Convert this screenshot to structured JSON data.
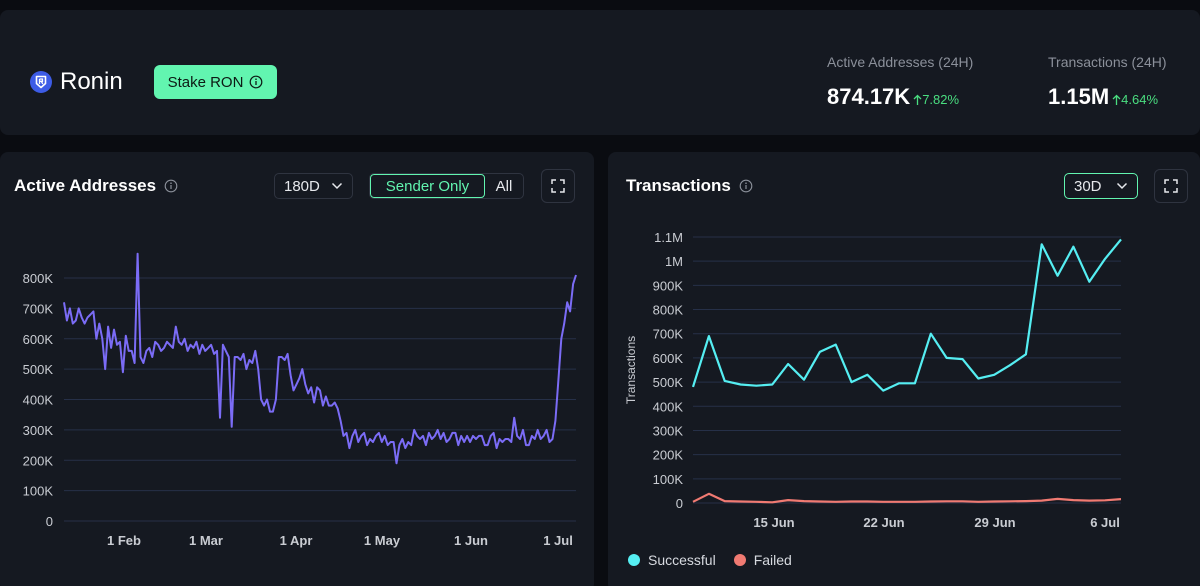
{
  "header": {
    "brand": "Ronin",
    "stake_button": "Stake RON",
    "stats": [
      {
        "label": "Active Addresses (24H)",
        "value": "874.17K",
        "change": "7.82%"
      },
      {
        "label": "Transactions (24H)",
        "value": "1.15M",
        "change": "4.64%"
      }
    ]
  },
  "panels": {
    "active": {
      "title": "Active Addresses",
      "range": "180D",
      "toggle": [
        "Sender Only",
        "All"
      ]
    },
    "tx": {
      "title": "Transactions",
      "range": "30D"
    }
  },
  "colors": {
    "active_line": "#7b6cf6",
    "successful": "#55eef2",
    "failed": "#f07a72",
    "accent": "#62f5b0",
    "grid": "#263048"
  },
  "chart_data": [
    {
      "type": "line",
      "title": "Active Addresses",
      "y_ticks": [
        "0",
        "100K",
        "200K",
        "300K",
        "400K",
        "500K",
        "600K",
        "700K",
        "800K"
      ],
      "ylim": [
        0,
        800000
      ],
      "x_ticks": [
        "1 Feb",
        "1 Mar",
        "1 Apr",
        "1 May",
        "1 Jun",
        "1 Jul"
      ],
      "grid": true,
      "series": [
        {
          "values": [
            720000,
            660000,
            700000,
            650000,
            660000,
            700000,
            670000,
            650000,
            670000,
            680000,
            690000,
            600000,
            650000,
            600000,
            500000,
            640000,
            570000,
            630000,
            580000,
            590000,
            490000,
            610000,
            560000,
            560000,
            520000,
            880000,
            540000,
            520000,
            560000,
            570000,
            540000,
            590000,
            580000,
            560000,
            570000,
            590000,
            580000,
            570000,
            640000,
            590000,
            580000,
            600000,
            560000,
            580000,
            570000,
            590000,
            550000,
            580000,
            560000,
            570000,
            580000,
            550000,
            560000,
            340000,
            580000,
            560000,
            540000,
            310000,
            540000,
            540000,
            530000,
            550000,
            500000,
            530000,
            520000,
            560000,
            500000,
            400000,
            380000,
            400000,
            360000,
            360000,
            400000,
            540000,
            540000,
            530000,
            550000,
            480000,
            430000,
            450000,
            470000,
            500000,
            450000,
            420000,
            440000,
            390000,
            440000,
            430000,
            380000,
            410000,
            380000,
            380000,
            390000,
            370000,
            330000,
            280000,
            290000,
            240000,
            280000,
            300000,
            260000,
            280000,
            290000,
            250000,
            270000,
            260000,
            280000,
            290000,
            260000,
            280000,
            250000,
            260000,
            260000,
            190000,
            250000,
            270000,
            240000,
            260000,
            250000,
            300000,
            280000,
            270000,
            280000,
            250000,
            290000,
            270000,
            280000,
            300000,
            270000,
            290000,
            260000,
            270000,
            290000,
            290000,
            250000,
            280000,
            260000,
            280000,
            260000,
            280000,
            270000,
            280000,
            280000,
            250000,
            250000,
            280000,
            290000,
            240000,
            270000,
            260000,
            270000,
            270000,
            260000,
            340000,
            280000,
            270000,
            300000,
            250000,
            250000,
            280000,
            270000,
            300000,
            270000,
            280000,
            300000,
            260000,
            270000,
            330000,
            460000,
            600000,
            650000,
            720000,
            690000,
            780000,
            810000
          ]
        }
      ]
    },
    {
      "type": "line",
      "title": "Transactions",
      "ylabel": "Transactions",
      "y_ticks": [
        "0",
        "100K",
        "200K",
        "300K",
        "400K",
        "500K",
        "600K",
        "700K",
        "800K",
        "900K",
        "1M",
        "1.1M"
      ],
      "ylim": [
        0,
        1100000
      ],
      "x_ticks": [
        "15 Jun",
        "22 Jun",
        "29 Jun",
        "6 Jul"
      ],
      "grid": true,
      "legend": "bottom-left",
      "series": [
        {
          "name": "Successful",
          "values": [
            480000,
            690000,
            505000,
            490000,
            485000,
            490000,
            575000,
            510000,
            625000,
            655000,
            500000,
            530000,
            465000,
            495000,
            495000,
            700000,
            600000,
            595000,
            515000,
            530000,
            570000,
            615000,
            1070000,
            940000,
            1060000,
            915000,
            1010000,
            1090000
          ]
        },
        {
          "name": "Failed",
          "values": [
            5000,
            38000,
            8000,
            6000,
            5000,
            3000,
            12000,
            8000,
            6000,
            5000,
            6000,
            6000,
            5000,
            5000,
            5000,
            6000,
            7000,
            7000,
            5000,
            6000,
            7000,
            8000,
            10000,
            17000,
            12000,
            10000,
            11000,
            16000
          ]
        }
      ]
    }
  ]
}
